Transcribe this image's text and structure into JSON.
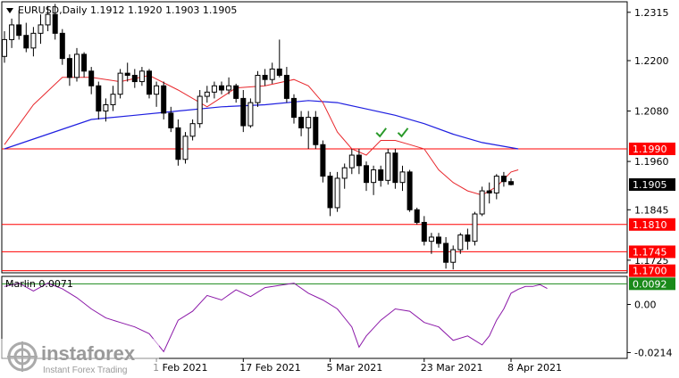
{
  "header": {
    "symbol_line": "EURUSD,Daily  1.1912 1.1920 1.1903 1.1905"
  },
  "indicator": {
    "label": "Marlin 0.0071",
    "ticks": [
      "0.00",
      "-0.0214"
    ],
    "tick_values": [
      0,
      -0.0214
    ],
    "marker_text": "0.0092",
    "marker_value": 0.0092
  },
  "watermark": {
    "brand": "instaforex",
    "tagline": "Instant Forex Trading"
  },
  "colors": {
    "bull_body": "#ffffff",
    "bear_body": "#000000",
    "fast_ma": "#e8282d",
    "slow_ma": "#1f1fe0",
    "hline": "#ff0000",
    "osc_line": "#8b18a8",
    "osc_zero": "#1a8a1a",
    "check": "#2a9a2a",
    "price_box": "#000000",
    "level_box": "#ff0000"
  },
  "chart_data": {
    "type": "candlestick",
    "symbol": "EURUSD",
    "timeframe": "Daily",
    "ohlc_header": {
      "open": 1.1912,
      "high": 1.192,
      "low": 1.1903,
      "close": 1.1905
    },
    "price_axis": {
      "ylim": [
        1.1695,
        1.234
      ],
      "ticks": [
        1.2315,
        1.22,
        1.208,
        1.196,
        1.1845,
        1.1725
      ]
    },
    "x_labels": [
      "1 Feb 2021",
      "17 Feb 2021",
      "5 Mar 2021",
      "23 Mar 2021",
      "8 Apr 2021"
    ],
    "x_label_index": [
      21,
      33,
      45,
      58,
      70
    ],
    "levels": [
      {
        "value": 1.199,
        "label": "1.1990"
      },
      {
        "value": 1.181,
        "label": "1.1810"
      },
      {
        "value": 1.1745,
        "label": "1.1745"
      },
      {
        "value": 1.17,
        "label": "1.1700"
      }
    ],
    "current_price": {
      "value": 1.1905,
      "label": "1.1905"
    },
    "check_marks": [
      {
        "index": 52,
        "value": 1.202
      },
      {
        "index": 55,
        "value": 1.202
      }
    ],
    "candles": [
      [
        1.221,
        1.227,
        1.2195,
        1.225
      ],
      [
        1.225,
        1.23,
        1.223,
        1.2285
      ],
      [
        1.2285,
        1.232,
        1.225,
        1.226
      ],
      [
        1.226,
        1.229,
        1.222,
        1.223
      ],
      [
        1.223,
        1.228,
        1.221,
        1.2265
      ],
      [
        1.2265,
        1.231,
        1.224,
        1.2285
      ],
      [
        1.2285,
        1.233,
        1.227,
        1.231
      ],
      [
        1.231,
        1.2335,
        1.225,
        1.2265
      ],
      [
        1.2265,
        1.2275,
        1.219,
        1.2205
      ],
      [
        1.2205,
        1.2215,
        1.214,
        1.216
      ],
      [
        1.216,
        1.223,
        1.215,
        1.2215
      ],
      [
        1.2215,
        1.222,
        1.216,
        1.2175
      ],
      [
        1.2175,
        1.2185,
        1.212,
        1.214
      ],
      [
        1.214,
        1.215,
        1.206,
        1.208
      ],
      [
        1.208,
        1.211,
        1.2055,
        1.2095
      ],
      [
        1.2095,
        1.214,
        1.208,
        1.212
      ],
      [
        1.212,
        1.218,
        1.211,
        1.217
      ],
      [
        1.217,
        1.2195,
        1.215,
        1.2165
      ],
      [
        1.2165,
        1.218,
        1.2135,
        1.215
      ],
      [
        1.215,
        1.2185,
        1.214,
        1.2175
      ],
      [
        1.2175,
        1.218,
        1.211,
        1.212
      ],
      [
        1.212,
        1.215,
        1.209,
        1.214
      ],
      [
        1.214,
        1.215,
        1.206,
        1.2075
      ],
      [
        1.2075,
        1.209,
        1.203,
        1.204
      ],
      [
        1.204,
        1.206,
        1.195,
        1.1965
      ],
      [
        1.1965,
        1.203,
        1.1955,
        1.202
      ],
      [
        1.202,
        1.206,
        1.201,
        1.205
      ],
      [
        1.205,
        1.213,
        1.204,
        1.2115
      ],
      [
        1.2115,
        1.214,
        1.21,
        1.2125
      ],
      [
        1.2125,
        1.215,
        1.211,
        1.214
      ],
      [
        1.214,
        1.215,
        1.212,
        1.213
      ],
      [
        1.213,
        1.216,
        1.212,
        1.214
      ],
      [
        1.214,
        1.2145,
        1.21,
        1.211
      ],
      [
        1.211,
        1.213,
        1.203,
        1.2045
      ],
      [
        1.2045,
        1.211,
        1.204,
        1.21
      ],
      [
        1.21,
        1.2175,
        1.209,
        1.2165
      ],
      [
        1.2165,
        1.218,
        1.214,
        1.2155
      ],
      [
        1.2155,
        1.2195,
        1.2145,
        1.218
      ],
      [
        1.218,
        1.225,
        1.216,
        1.2165
      ],
      [
        1.2165,
        1.2185,
        1.21,
        1.211
      ],
      [
        1.211,
        1.212,
        1.205,
        1.2065
      ],
      [
        1.2065,
        1.208,
        1.202,
        1.204
      ],
      [
        1.204,
        1.208,
        1.199,
        1.2065
      ],
      [
        1.2065,
        1.208,
        1.199,
        1.2
      ],
      [
        1.2,
        1.201,
        1.191,
        1.1925
      ],
      [
        1.1925,
        1.1935,
        1.183,
        1.185
      ],
      [
        1.185,
        1.1935,
        1.184,
        1.192
      ],
      [
        1.192,
        1.1955,
        1.1895,
        1.1945
      ],
      [
        1.1945,
        1.199,
        1.193,
        1.1975
      ],
      [
        1.1975,
        1.199,
        1.193,
        1.195
      ],
      [
        1.195,
        1.196,
        1.189,
        1.191
      ],
      [
        1.191,
        1.195,
        1.188,
        1.194
      ],
      [
        1.194,
        1.195,
        1.19,
        1.1915
      ],
      [
        1.1915,
        1.199,
        1.1905,
        1.198
      ],
      [
        1.198,
        1.199,
        1.1895,
        1.191
      ],
      [
        1.191,
        1.195,
        1.189,
        1.1935
      ],
      [
        1.1935,
        1.194,
        1.184,
        1.1845
      ],
      [
        1.1845,
        1.185,
        1.181,
        1.1815
      ],
      [
        1.1815,
        1.183,
        1.176,
        1.177
      ],
      [
        1.177,
        1.179,
        1.174,
        1.178
      ],
      [
        1.178,
        1.179,
        1.1755,
        1.1765
      ],
      [
        1.1765,
        1.178,
        1.1705,
        1.172
      ],
      [
        1.172,
        1.176,
        1.1703,
        1.175
      ],
      [
        1.175,
        1.179,
        1.174,
        1.1785
      ],
      [
        1.1785,
        1.18,
        1.175,
        1.177
      ],
      [
        1.177,
        1.184,
        1.176,
        1.1835
      ],
      [
        1.1835,
        1.19,
        1.183,
        1.189
      ],
      [
        1.189,
        1.191,
        1.186,
        1.1885
      ],
      [
        1.1885,
        1.193,
        1.187,
        1.1925
      ],
      [
        1.1925,
        1.1935,
        1.19,
        1.1912
      ],
      [
        1.1912,
        1.192,
        1.1903,
        1.1905
      ]
    ],
    "fast_ma": [
      [
        0,
        1.2
      ],
      [
        4,
        1.2095
      ],
      [
        8,
        1.216
      ],
      [
        12,
        1.216
      ],
      [
        16,
        1.215
      ],
      [
        20,
        1.2165
      ],
      [
        24,
        1.213
      ],
      [
        28,
        1.209
      ],
      [
        32,
        1.2135
      ],
      [
        36,
        1.214
      ],
      [
        40,
        1.2155
      ],
      [
        42,
        1.214
      ],
      [
        44,
        1.21
      ],
      [
        46,
        1.203
      ],
      [
        48,
        1.199
      ],
      [
        50,
        1.1975
      ],
      [
        52,
        1.201
      ],
      [
        54,
        1.201
      ],
      [
        56,
        1.2
      ],
      [
        58,
        1.199
      ],
      [
        60,
        1.194
      ],
      [
        62,
        1.191
      ],
      [
        64,
        1.189
      ],
      [
        66,
        1.188
      ],
      [
        68,
        1.19
      ],
      [
        70,
        1.1935
      ],
      [
        71,
        1.194
      ]
    ],
    "slow_ma": [
      [
        0,
        1.199
      ],
      [
        6,
        1.2025
      ],
      [
        12,
        1.206
      ],
      [
        18,
        1.207
      ],
      [
        24,
        1.208
      ],
      [
        30,
        1.209
      ],
      [
        36,
        1.2095
      ],
      [
        42,
        1.2105
      ],
      [
        46,
        1.21
      ],
      [
        50,
        1.2085
      ],
      [
        54,
        1.207
      ],
      [
        58,
        1.205
      ],
      [
        62,
        1.2025
      ],
      [
        66,
        1.2005
      ],
      [
        71,
        1.199
      ]
    ],
    "marlin": {
      "ylim": [
        -0.024,
        0.0125
      ],
      "marker": 0.0092,
      "points": [
        [
          0,
          0.008
        ],
        [
          2,
          0.0095
        ],
        [
          4,
          0.006
        ],
        [
          6,
          0.0095
        ],
        [
          8,
          0.007
        ],
        [
          10,
          0.003
        ],
        [
          12,
          -0.002
        ],
        [
          14,
          -0.006
        ],
        [
          16,
          -0.008
        ],
        [
          18,
          -0.01
        ],
        [
          20,
          -0.013
        ],
        [
          22,
          -0.021
        ],
        [
          24,
          -0.007
        ],
        [
          26,
          -0.003
        ],
        [
          28,
          0.004
        ],
        [
          30,
          0.002
        ],
        [
          32,
          0.0065
        ],
        [
          34,
          0.0035
        ],
        [
          36,
          0.0075
        ],
        [
          38,
          0.0085
        ],
        [
          40,
          0.0095
        ],
        [
          42,
          0.005
        ],
        [
          44,
          0.002
        ],
        [
          46,
          -0.002
        ],
        [
          48,
          -0.01
        ],
        [
          49,
          -0.019
        ],
        [
          50,
          -0.014
        ],
        [
          52,
          -0.007
        ],
        [
          54,
          -0.002
        ],
        [
          56,
          -0.003
        ],
        [
          58,
          -0.008
        ],
        [
          60,
          -0.01
        ],
        [
          62,
          -0.016
        ],
        [
          64,
          -0.014
        ],
        [
          66,
          -0.018
        ],
        [
          67,
          -0.014
        ],
        [
          68,
          -0.007
        ],
        [
          69,
          -0.002
        ],
        [
          70,
          0.005
        ],
        [
          71,
          0.0068
        ],
        [
          72,
          0.008
        ],
        [
          73,
          0.008
        ],
        [
          74,
          0.0088
        ],
        [
          75,
          0.0071
        ]
      ]
    }
  }
}
